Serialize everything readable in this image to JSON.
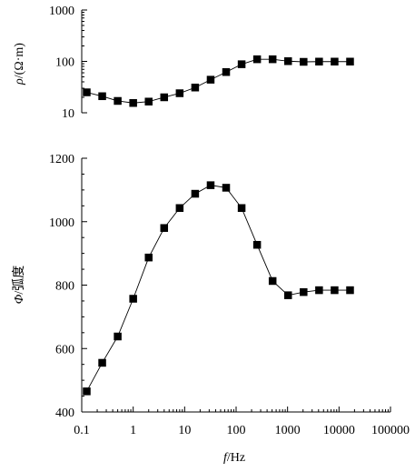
{
  "chart_data": [
    {
      "type": "line",
      "xscale": "log",
      "yscale": "log",
      "xlim": [
        0.1,
        100000
      ],
      "ylim": [
        10,
        1000
      ],
      "yticks": [
        "10",
        "100",
        "1000"
      ],
      "ylabel_symbol": "ρ",
      "ylabel_unit": "/(Ω·m)",
      "grid": false,
      "x": [
        0.125,
        0.25,
        0.5,
        1,
        2,
        4,
        8,
        16,
        32,
        64,
        128,
        256,
        512,
        1024,
        2048,
        4096,
        8192,
        16384
      ],
      "y": [
        25,
        21,
        17,
        15.5,
        16.5,
        20,
        24,
        31,
        44,
        62,
        88,
        110,
        110,
        101,
        98,
        99,
        99,
        99
      ]
    },
    {
      "type": "line",
      "xscale": "log",
      "xlim": [
        0.1,
        100000
      ],
      "ylim": [
        400,
        1200
      ],
      "xticks": [
        "0.1",
        "1",
        "10",
        "100",
        "1000",
        "10000",
        "100000"
      ],
      "yticks": [
        "400",
        "600",
        "800",
        "1000",
        "1200"
      ],
      "xlabel_symbol": "f",
      "xlabel_unit": "/Hz",
      "ylabel_symbol": "Φ",
      "ylabel_unit": "/弧度",
      "grid": false,
      "x": [
        0.125,
        0.25,
        0.5,
        1,
        2,
        4,
        8,
        16,
        32,
        64,
        128,
        256,
        512,
        1024,
        2048,
        4096,
        8192,
        16384
      ],
      "y": [
        465,
        555,
        638,
        757,
        887,
        980,
        1043,
        1088,
        1115,
        1107,
        1043,
        927,
        813,
        768,
        778,
        784,
        784,
        784
      ]
    }
  ]
}
